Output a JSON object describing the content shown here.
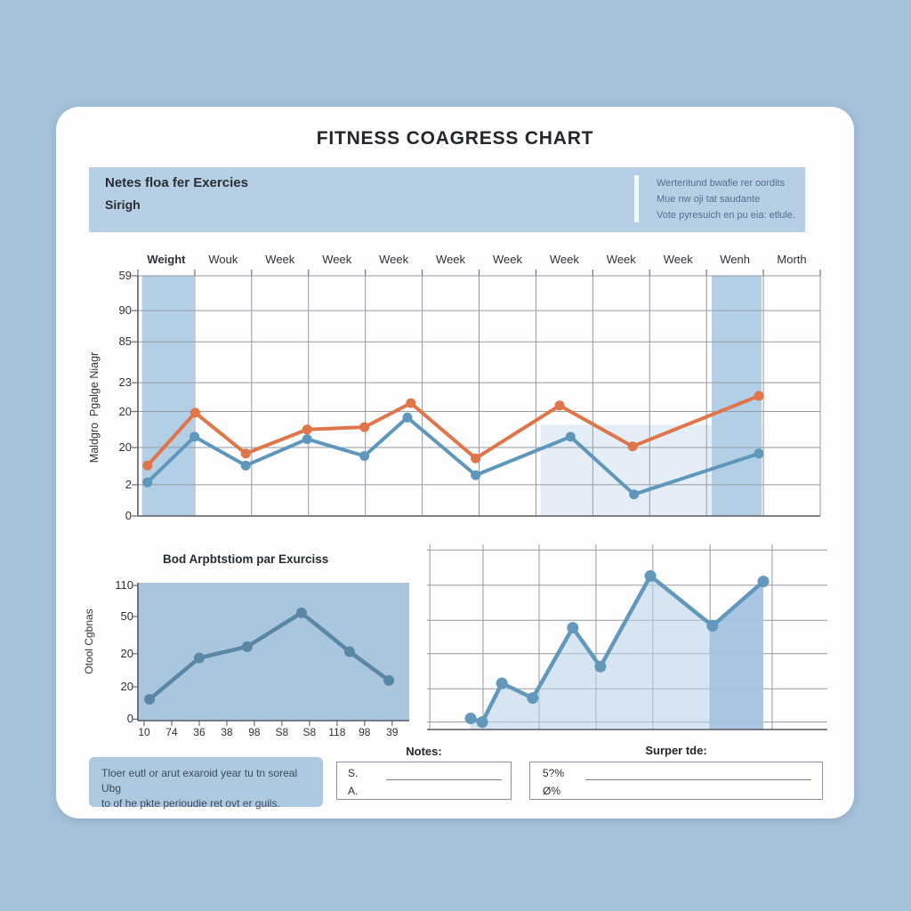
{
  "page": {
    "title": "FITNESS COAGRESS CHART"
  },
  "header_band": {
    "left_title": "Netes floa fer Exercies",
    "left_subtitle": "Sirigh",
    "right_lines": [
      "Werteritund bwafie rer oordits",
      "Mue nw oji tat saudante",
      "Vote pyresuich en pu eia: etlule."
    ]
  },
  "chart_data": [
    {
      "type": "line",
      "title": "",
      "columns": [
        "Weight",
        "Wouk",
        "Week",
        "Week",
        "Week",
        "Week",
        "Week",
        "Week",
        "Week",
        "Week",
        "Wenh",
        "Morth"
      ],
      "ylabel": "Maldgro  Pgalge Niagr",
      "ylim": [
        0,
        100
      ],
      "yticks": [
        {
          "label": "59",
          "f": 0.0
        },
        {
          "label": "90",
          "f": 0.145
        },
        {
          "label": "85",
          "f": 0.275
        },
        {
          "label": "23",
          "f": 0.445
        },
        {
          "label": "20",
          "f": 0.565
        },
        {
          "label": "20",
          "f": 0.715
        },
        {
          "label": "2",
          "f": 0.87
        },
        {
          "label": "0",
          "f": 1.0
        }
      ],
      "band_color": "#b3cfe6",
      "highlight_bands": [
        {
          "x0": 0.006,
          "x1": 0.082
        },
        {
          "x0": 0.841,
          "x1": 0.914
        }
      ],
      "soft_region": {
        "x0": 0.59,
        "x1": 0.915,
        "y0": 0.62,
        "y1": 1.0
      },
      "series": [
        {
          "name": "orange",
          "color": "#df7549",
          "points": [
            [
              0.014,
              21
            ],
            [
              0.084,
              43
            ],
            [
              0.158,
              26
            ],
            [
              0.248,
              36
            ],
            [
              0.332,
              37
            ],
            [
              0.4,
              47
            ],
            [
              0.495,
              24
            ],
            [
              0.618,
              46
            ],
            [
              0.725,
              29
            ],
            [
              0.91,
              50
            ]
          ]
        },
        {
          "name": "blue",
          "color": "#5f97bc",
          "points": [
            [
              0.014,
              14
            ],
            [
              0.083,
              33
            ],
            [
              0.158,
              21
            ],
            [
              0.248,
              32
            ],
            [
              0.332,
              25
            ],
            [
              0.395,
              41
            ],
            [
              0.495,
              17
            ],
            [
              0.634,
              33
            ],
            [
              0.727,
              9
            ],
            [
              0.91,
              26
            ]
          ]
        }
      ]
    },
    {
      "type": "line",
      "title": "Bod Arpbtstiom par Exurciss",
      "ylabel": "Otool Cgbnas",
      "panel_fill": "#a9c6de",
      "line_color": "#5b87a6",
      "ylim": [
        0,
        110
      ],
      "yticks": [
        {
          "label": "110",
          "f": 0.02
        },
        {
          "label": "50",
          "f": 0.245
        },
        {
          "label": "20",
          "f": 0.515
        },
        {
          "label": "20",
          "f": 0.755
        },
        {
          "label": "0",
          "f": 0.99
        }
      ],
      "xticks": [
        "10",
        "74",
        "36",
        "38",
        "98",
        "S8",
        "S8",
        "118",
        "98",
        "39"
      ],
      "points": [
        [
          0.043,
          17
        ],
        [
          0.226,
          50
        ],
        [
          0.403,
          59
        ],
        [
          0.603,
          86
        ],
        [
          0.78,
          55
        ],
        [
          0.925,
          32
        ]
      ]
    },
    {
      "type": "area",
      "title": "",
      "line_color": "#6398bd",
      "fill": "rgba(183,209,231,0.55)",
      "band": {
        "x0": 0.707,
        "x1": 0.84,
        "fill": "rgba(160,193,222,0.85)"
      },
      "ylim": [
        0,
        100
      ],
      "hgrid": [
        0.03,
        0.22,
        0.41,
        0.59,
        0.78,
        0.96
      ],
      "vgrid": [
        0.007,
        0.14,
        0.28,
        0.422,
        0.564,
        0.707,
        0.862
      ],
      "points": [
        [
          0.109,
          6
        ],
        [
          0.138,
          4
        ],
        [
          0.187,
          25
        ],
        [
          0.264,
          17
        ],
        [
          0.364,
          55
        ],
        [
          0.433,
          34
        ],
        [
          0.558,
          83
        ],
        [
          0.713,
          56
        ],
        [
          0.84,
          80
        ]
      ]
    }
  ],
  "notes_left_box": {
    "line1": "Tloer eutl or arut exaroid year tu tn soreal Ubg",
    "line2": "to of he pkte perioudie ret ovt er guils."
  },
  "notes_center": {
    "title": "Notes:",
    "field1_label": "S.",
    "field2_label": "A."
  },
  "notes_right": {
    "title": "Surper tde:",
    "field1_value": "5?%",
    "field2_value": "Ø%"
  },
  "colors": {
    "page_bg": "#a6c2da",
    "card_bg": "#fdfdfd",
    "header_band_bg": "#b6cfe4",
    "accent_orange": "#df7549",
    "accent_blue": "#5f97bc",
    "grid": "#949aa3"
  }
}
